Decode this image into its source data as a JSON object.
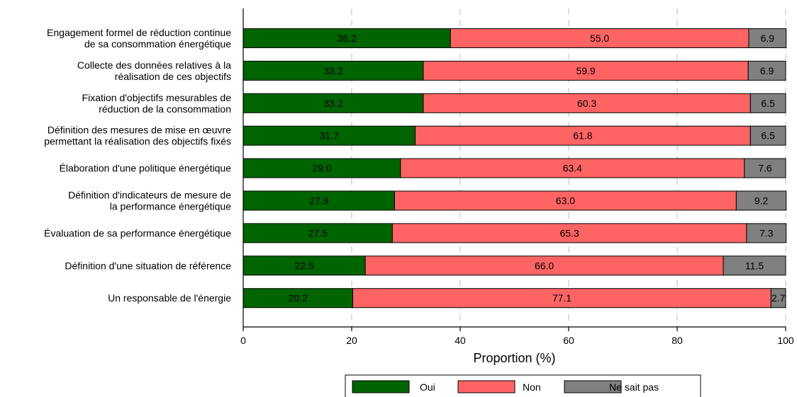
{
  "chart_data": {
    "type": "bar",
    "orientation": "horizontal",
    "stacked": true,
    "categories": [
      [
        "Engagement formel de réduction continue",
        "de sa consommation énergétique"
      ],
      [
        "Collecte des données relatives à la",
        "réalisation de ces objectifs"
      ],
      [
        "Fixation d'objectifs mesurables de",
        "réduction de la consommation"
      ],
      [
        "Définition des mesures de mise en œuvre",
        "permettant la réalisation des objectifs fixés"
      ],
      [
        "Élaboration d'une politique énergétique"
      ],
      [
        "Définition d'indicateurs de mesure de",
        "la performance énergétique"
      ],
      [
        "Évaluation de sa performance énergétique"
      ],
      [
        "Définition d'une situation de référence"
      ],
      [
        "Un responsable de l'énergie"
      ]
    ],
    "series": [
      {
        "name": "Oui",
        "color": "#006400",
        "values": [
          38.2,
          33.2,
          33.2,
          31.7,
          29.0,
          27.9,
          27.5,
          22.5,
          20.2
        ],
        "labels": [
          "38.2",
          "33.2",
          "33.2",
          "31.7",
          "29.0",
          "27.9",
          "27.5",
          "22.5",
          "20.2"
        ]
      },
      {
        "name": "Non",
        "color": "#FF6464",
        "values": [
          55.0,
          59.9,
          60.3,
          61.8,
          63.4,
          63.0,
          65.3,
          66.0,
          77.1
        ],
        "labels": [
          "55.0",
          "59.9",
          "60.3",
          "61.8",
          "63.4",
          "63.0",
          "65.3",
          "66.0",
          "77.1"
        ]
      },
      {
        "name": "Ne sait pas",
        "color": "#808080",
        "values": [
          6.9,
          6.9,
          6.5,
          6.5,
          7.6,
          9.2,
          7.3,
          11.5,
          2.7
        ],
        "labels": [
          "6.9",
          "6.9",
          "6.5",
          "6.5",
          "7.6",
          "9.2",
          "7.3",
          "11.5",
          "2.7"
        ]
      }
    ],
    "xlabel": "Proportion (%)",
    "ylabel": "",
    "title": "",
    "xlim": [
      0,
      100
    ],
    "xticks": [
      0,
      20,
      40,
      60,
      80,
      100
    ],
    "grid": "vertical dashed",
    "legend_position": "bottom"
  }
}
